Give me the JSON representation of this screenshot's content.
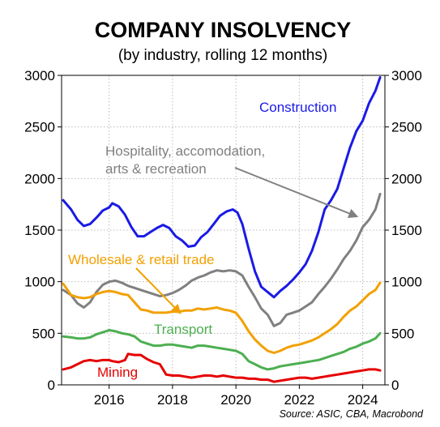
{
  "chart_data": {
    "type": "line",
    "title": "COMPANY INSOLVENCY",
    "subtitle": "(by industry, rolling 12 months)",
    "source": "Source: ASIC, CBA, Macrobond",
    "xlim": [
      2014.5,
      2024.7
    ],
    "ylim": [
      0,
      3000
    ],
    "y_ticks": [
      0,
      500,
      1000,
      1500,
      2000,
      2500,
      3000
    ],
    "x_ticks": [
      2016,
      2018,
      2020,
      2022,
      2024
    ],
    "grid": true,
    "series": [
      {
        "name": "Construction",
        "color": "#1a1ae6",
        "annotation": "Construction",
        "points": [
          [
            2014.55,
            1790
          ],
          [
            2014.8,
            1700
          ],
          [
            2015.0,
            1600
          ],
          [
            2015.2,
            1540
          ],
          [
            2015.4,
            1560
          ],
          [
            2015.6,
            1620
          ],
          [
            2015.8,
            1690
          ],
          [
            2016.0,
            1720
          ],
          [
            2016.1,
            1760
          ],
          [
            2016.3,
            1730
          ],
          [
            2016.5,
            1650
          ],
          [
            2016.7,
            1530
          ],
          [
            2016.9,
            1440
          ],
          [
            2017.1,
            1440
          ],
          [
            2017.3,
            1480
          ],
          [
            2017.5,
            1520
          ],
          [
            2017.7,
            1550
          ],
          [
            2017.9,
            1520
          ],
          [
            2018.1,
            1440
          ],
          [
            2018.3,
            1400
          ],
          [
            2018.5,
            1340
          ],
          [
            2018.7,
            1350
          ],
          [
            2018.9,
            1430
          ],
          [
            2019.1,
            1480
          ],
          [
            2019.3,
            1560
          ],
          [
            2019.5,
            1640
          ],
          [
            2019.7,
            1680
          ],
          [
            2019.9,
            1700
          ],
          [
            2020.05,
            1670
          ],
          [
            2020.2,
            1560
          ],
          [
            2020.4,
            1320
          ],
          [
            2020.6,
            1100
          ],
          [
            2020.8,
            950
          ],
          [
            2021.0,
            900
          ],
          [
            2021.2,
            850
          ],
          [
            2021.4,
            910
          ],
          [
            2021.6,
            960
          ],
          [
            2021.8,
            1020
          ],
          [
            2022.0,
            1090
          ],
          [
            2022.2,
            1170
          ],
          [
            2022.4,
            1300
          ],
          [
            2022.6,
            1480
          ],
          [
            2022.8,
            1700
          ],
          [
            2023.0,
            1790
          ],
          [
            2023.2,
            1900
          ],
          [
            2023.4,
            2100
          ],
          [
            2023.6,
            2300
          ],
          [
            2023.8,
            2460
          ],
          [
            2024.0,
            2560
          ],
          [
            2024.2,
            2730
          ],
          [
            2024.4,
            2850
          ],
          [
            2024.55,
            2980
          ]
        ]
      },
      {
        "name": "Hospitality, accomodation, arts & recreation",
        "color": "#808080",
        "annotation": [
          "Hospitality, accomodation,",
          "arts & recreation"
        ],
        "points": [
          [
            2014.55,
            920
          ],
          [
            2014.8,
            870
          ],
          [
            2015.0,
            790
          ],
          [
            2015.2,
            750
          ],
          [
            2015.4,
            800
          ],
          [
            2015.6,
            900
          ],
          [
            2015.8,
            970
          ],
          [
            2016.0,
            1000
          ],
          [
            2016.2,
            1010
          ],
          [
            2016.4,
            990
          ],
          [
            2016.6,
            960
          ],
          [
            2016.8,
            940
          ],
          [
            2017.0,
            920
          ],
          [
            2017.2,
            900
          ],
          [
            2017.4,
            880
          ],
          [
            2017.6,
            860
          ],
          [
            2017.8,
            870
          ],
          [
            2018.0,
            890
          ],
          [
            2018.2,
            920
          ],
          [
            2018.4,
            960
          ],
          [
            2018.6,
            1010
          ],
          [
            2018.8,
            1040
          ],
          [
            2019.0,
            1060
          ],
          [
            2019.2,
            1090
          ],
          [
            2019.4,
            1110
          ],
          [
            2019.6,
            1100
          ],
          [
            2019.8,
            1110
          ],
          [
            2020.0,
            1100
          ],
          [
            2020.2,
            1060
          ],
          [
            2020.4,
            950
          ],
          [
            2020.6,
            850
          ],
          [
            2020.8,
            740
          ],
          [
            2021.0,
            680
          ],
          [
            2021.2,
            570
          ],
          [
            2021.4,
            600
          ],
          [
            2021.6,
            680
          ],
          [
            2021.8,
            700
          ],
          [
            2022.0,
            720
          ],
          [
            2022.2,
            760
          ],
          [
            2022.4,
            800
          ],
          [
            2022.6,
            880
          ],
          [
            2022.8,
            950
          ],
          [
            2023.0,
            1030
          ],
          [
            2023.2,
            1120
          ],
          [
            2023.4,
            1220
          ],
          [
            2023.6,
            1300
          ],
          [
            2023.8,
            1400
          ],
          [
            2024.0,
            1530
          ],
          [
            2024.2,
            1600
          ],
          [
            2024.4,
            1700
          ],
          [
            2024.55,
            1850
          ]
        ]
      },
      {
        "name": "Wholesale & retail trade",
        "color": "#f2a000",
        "annotation": "Wholesale & retail trade",
        "points": [
          [
            2014.55,
            980
          ],
          [
            2014.8,
            870
          ],
          [
            2015.0,
            850
          ],
          [
            2015.2,
            840
          ],
          [
            2015.4,
            850
          ],
          [
            2015.6,
            880
          ],
          [
            2015.8,
            900
          ],
          [
            2016.0,
            910
          ],
          [
            2016.2,
            900
          ],
          [
            2016.4,
            880
          ],
          [
            2016.6,
            870
          ],
          [
            2016.8,
            800
          ],
          [
            2017.0,
            730
          ],
          [
            2017.2,
            720
          ],
          [
            2017.4,
            700
          ],
          [
            2017.6,
            700
          ],
          [
            2017.8,
            700
          ],
          [
            2018.0,
            710
          ],
          [
            2018.2,
            710
          ],
          [
            2018.4,
            720
          ],
          [
            2018.6,
            720
          ],
          [
            2018.8,
            740
          ],
          [
            2019.0,
            730
          ],
          [
            2019.2,
            740
          ],
          [
            2019.4,
            750
          ],
          [
            2019.6,
            730
          ],
          [
            2019.8,
            720
          ],
          [
            2020.0,
            700
          ],
          [
            2020.2,
            620
          ],
          [
            2020.4,
            520
          ],
          [
            2020.6,
            440
          ],
          [
            2020.8,
            380
          ],
          [
            2021.0,
            330
          ],
          [
            2021.2,
            310
          ],
          [
            2021.4,
            330
          ],
          [
            2021.6,
            360
          ],
          [
            2021.8,
            380
          ],
          [
            2022.0,
            390
          ],
          [
            2022.2,
            410
          ],
          [
            2022.4,
            430
          ],
          [
            2022.6,
            460
          ],
          [
            2022.8,
            500
          ],
          [
            2023.0,
            540
          ],
          [
            2023.2,
            590
          ],
          [
            2023.4,
            660
          ],
          [
            2023.6,
            720
          ],
          [
            2023.8,
            760
          ],
          [
            2024.0,
            820
          ],
          [
            2024.2,
            880
          ],
          [
            2024.4,
            920
          ],
          [
            2024.55,
            990
          ]
        ]
      },
      {
        "name": "Transport",
        "color": "#4caf50",
        "annotation": "Transport",
        "points": [
          [
            2014.55,
            470
          ],
          [
            2014.8,
            460
          ],
          [
            2015.0,
            450
          ],
          [
            2015.2,
            450
          ],
          [
            2015.4,
            460
          ],
          [
            2015.6,
            490
          ],
          [
            2015.8,
            510
          ],
          [
            2016.0,
            530
          ],
          [
            2016.2,
            520
          ],
          [
            2016.4,
            500
          ],
          [
            2016.6,
            490
          ],
          [
            2016.8,
            470
          ],
          [
            2017.0,
            420
          ],
          [
            2017.2,
            400
          ],
          [
            2017.4,
            380
          ],
          [
            2017.6,
            380
          ],
          [
            2017.8,
            390
          ],
          [
            2018.0,
            390
          ],
          [
            2018.2,
            380
          ],
          [
            2018.4,
            370
          ],
          [
            2018.6,
            360
          ],
          [
            2018.8,
            380
          ],
          [
            2019.0,
            380
          ],
          [
            2019.2,
            370
          ],
          [
            2019.4,
            360
          ],
          [
            2019.6,
            350
          ],
          [
            2019.8,
            340
          ],
          [
            2020.0,
            330
          ],
          [
            2020.2,
            300
          ],
          [
            2020.4,
            230
          ],
          [
            2020.6,
            200
          ],
          [
            2020.8,
            170
          ],
          [
            2021.0,
            150
          ],
          [
            2021.2,
            160
          ],
          [
            2021.4,
            180
          ],
          [
            2021.6,
            190
          ],
          [
            2021.8,
            200
          ],
          [
            2022.0,
            210
          ],
          [
            2022.2,
            220
          ],
          [
            2022.4,
            230
          ],
          [
            2022.6,
            240
          ],
          [
            2022.8,
            260
          ],
          [
            2023.0,
            280
          ],
          [
            2023.2,
            300
          ],
          [
            2023.4,
            320
          ],
          [
            2023.6,
            350
          ],
          [
            2023.8,
            370
          ],
          [
            2024.0,
            400
          ],
          [
            2024.2,
            420
          ],
          [
            2024.4,
            450
          ],
          [
            2024.55,
            500
          ]
        ]
      },
      {
        "name": "Mining",
        "color": "#e60000",
        "annotation": "Mining",
        "points": [
          [
            2014.55,
            150
          ],
          [
            2014.8,
            170
          ],
          [
            2015.0,
            200
          ],
          [
            2015.2,
            230
          ],
          [
            2015.4,
            240
          ],
          [
            2015.6,
            230
          ],
          [
            2015.8,
            240
          ],
          [
            2016.0,
            240
          ],
          [
            2016.1,
            230
          ],
          [
            2016.3,
            220
          ],
          [
            2016.5,
            240
          ],
          [
            2016.6,
            300
          ],
          [
            2016.8,
            290
          ],
          [
            2017.0,
            290
          ],
          [
            2017.2,
            250
          ],
          [
            2017.4,
            220
          ],
          [
            2017.6,
            200
          ],
          [
            2017.8,
            100
          ],
          [
            2018.0,
            90
          ],
          [
            2018.2,
            90
          ],
          [
            2018.4,
            80
          ],
          [
            2018.6,
            70
          ],
          [
            2018.8,
            80
          ],
          [
            2019.0,
            90
          ],
          [
            2019.2,
            90
          ],
          [
            2019.4,
            80
          ],
          [
            2019.6,
            90
          ],
          [
            2019.8,
            80
          ],
          [
            2020.0,
            70
          ],
          [
            2020.2,
            70
          ],
          [
            2020.4,
            60
          ],
          [
            2020.6,
            60
          ],
          [
            2020.8,
            50
          ],
          [
            2021.0,
            50
          ],
          [
            2021.2,
            30
          ],
          [
            2021.4,
            40
          ],
          [
            2021.6,
            50
          ],
          [
            2021.8,
            60
          ],
          [
            2022.0,
            70
          ],
          [
            2022.2,
            70
          ],
          [
            2022.4,
            60
          ],
          [
            2022.6,
            70
          ],
          [
            2022.8,
            80
          ],
          [
            2023.0,
            90
          ],
          [
            2023.2,
            100
          ],
          [
            2023.4,
            110
          ],
          [
            2023.6,
            120
          ],
          [
            2023.8,
            130
          ],
          [
            2024.0,
            140
          ],
          [
            2024.2,
            150
          ],
          [
            2024.4,
            150
          ],
          [
            2024.55,
            140
          ]
        ]
      }
    ]
  }
}
